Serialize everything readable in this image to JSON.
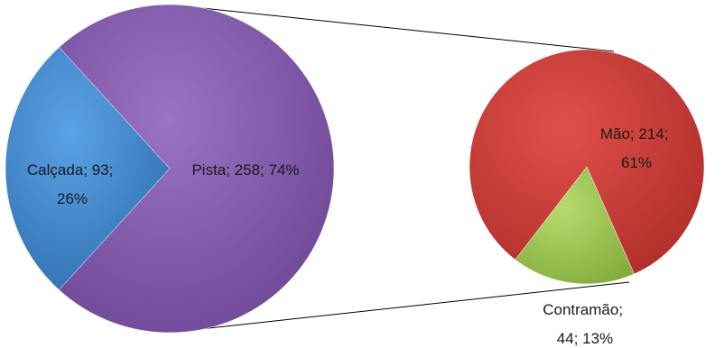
{
  "chart_data": [
    {
      "type": "pie",
      "slices": [
        {
          "name": "Calçada",
          "value": 93,
          "percent": "26%",
          "color": "#3c82c8",
          "label_lines": [
            "Calçada; 93;",
            "26%"
          ]
        },
        {
          "name": "Pista",
          "value": 258,
          "percent": "74%",
          "color": "#7f56a8",
          "label_lines": [
            "Pista; 258; 74%"
          ]
        }
      ]
    },
    {
      "type": "pie",
      "slices": [
        {
          "name": "Mão",
          "value": 214,
          "percent": "61%",
          "color": "#c43a35",
          "label_lines": [
            "Mão; 214;",
            "61%"
          ]
        },
        {
          "name": "Contramão",
          "value": 44,
          "percent": "13%",
          "color": "#96c24a",
          "label_lines": [
            "Contramão;",
            "44; 13%"
          ]
        }
      ]
    }
  ]
}
